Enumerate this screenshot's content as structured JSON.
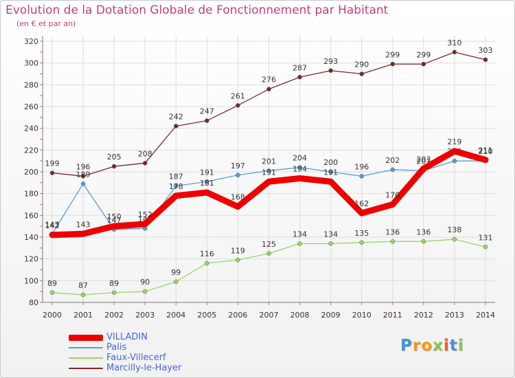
{
  "chart_data": {
    "type": "line",
    "title": "Evolution de la Dotation Globale de Fonctionnement par Habitant",
    "subtitle": "(en € et par an)",
    "xlabel": "",
    "ylabel": "",
    "ylim": [
      80,
      320
    ],
    "yticks": [
      "80",
      "100",
      "120",
      "140",
      "160",
      "180",
      "200",
      "220",
      "240",
      "260",
      "280",
      "300",
      "320"
    ],
    "categories": [
      "2000",
      "2001",
      "2002",
      "2003",
      "2004",
      "2005",
      "2006",
      "2007",
      "2008",
      "2009",
      "2010",
      "2011",
      "2012",
      "2013",
      "2014"
    ],
    "grid": true,
    "legend_position": "bottom-left",
    "series": [
      {
        "name": "Marcilly-le-Hayer",
        "color": "#7a2828",
        "values": [
          199,
          196,
          205,
          208,
          242,
          247,
          261,
          276,
          287,
          293,
          290,
          299,
          299,
          310,
          303
        ]
      },
      {
        "name": "Faux-Villecerf",
        "color": "#99d468",
        "values": [
          89,
          87,
          89,
          90,
          99,
          116,
          119,
          125,
          134,
          134,
          135,
          136,
          136,
          138,
          131
        ]
      },
      {
        "name": "Palis",
        "color": "#5b9bd1",
        "values": [
          143,
          189,
          147,
          148,
          187,
          191,
          197,
          201,
          204,
          200,
          196,
          202,
          201,
          210,
          210
        ]
      },
      {
        "name": "VILLADIN",
        "color": "#ee0000",
        "values": [
          142,
          143,
          150,
          152,
          178,
          181,
          168,
          191,
          194,
          191,
          162,
          170,
          203,
          219,
          211
        ]
      }
    ],
    "legend_order": [
      "VILLADIN",
      "Palis",
      "Faux-Villecerf",
      "Marcilly-le-Hayer"
    ]
  },
  "logo": {
    "letters": [
      "P",
      "r",
      "o",
      "x",
      "i",
      "t",
      "i"
    ],
    "colors": [
      "#4a90d9",
      "#f59b1c",
      "#f59b1c",
      "#8bc34a",
      "#ef5a2a",
      "#4a90d9",
      "#8bc34a"
    ]
  }
}
